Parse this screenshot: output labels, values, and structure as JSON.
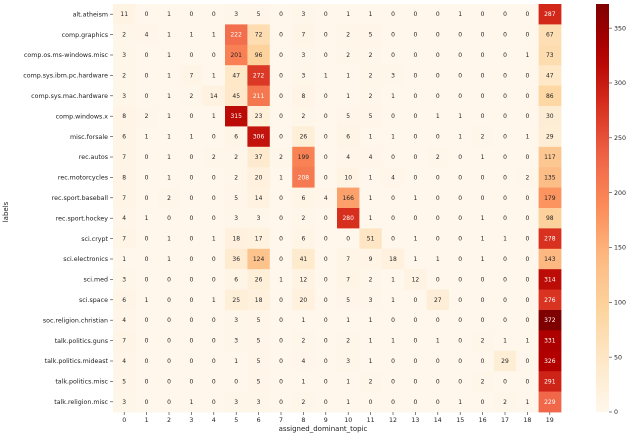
{
  "chart_data": {
    "type": "heatmap",
    "xlabel": "assigned_dominant_topic",
    "ylabel": "labels",
    "x_ticks": [
      "0",
      "1",
      "2",
      "3",
      "4",
      "5",
      "6",
      "7",
      "8",
      "9",
      "10",
      "11",
      "12",
      "13",
      "14",
      "15",
      "16",
      "17",
      "18",
      "19"
    ],
    "y_labels": [
      "alt.atheism",
      "comp.graphics",
      "comp.os.ms-windows.misc",
      "comp.sys.ibm.pc.hardware",
      "comp.sys.mac.hardware",
      "comp.windows.x",
      "misc.forsale",
      "rec.autos",
      "rec.motorcycles",
      "rec.sport.baseball",
      "rec.sport.hockey",
      "sci.crypt",
      "sci.electronics",
      "sci.med",
      "sci.space",
      "soc.religion.christian",
      "talk.politics.guns",
      "talk.politics.mideast",
      "talk.politics.misc",
      "talk.religion.misc"
    ],
    "values": [
      [
        11,
        0,
        1,
        0,
        0,
        3,
        5,
        0,
        3,
        0,
        1,
        1,
        0,
        0,
        0,
        1,
        0,
        0,
        0,
        287
      ],
      [
        2,
        4,
        1,
        1,
        1,
        222,
        72,
        0,
        7,
        0,
        2,
        5,
        0,
        0,
        0,
        0,
        0,
        0,
        0,
        67
      ],
      [
        3,
        0,
        1,
        0,
        0,
        201,
        96,
        0,
        3,
        0,
        2,
        2,
        0,
        0,
        0,
        0,
        0,
        0,
        1,
        73
      ],
      [
        2,
        0,
        1,
        7,
        1,
        47,
        272,
        0,
        3,
        1,
        1,
        2,
        3,
        0,
        0,
        0,
        0,
        0,
        0,
        47
      ],
      [
        3,
        0,
        1,
        2,
        14,
        45,
        211,
        0,
        8,
        0,
        1,
        2,
        1,
        0,
        0,
        0,
        0,
        0,
        0,
        86
      ],
      [
        8,
        2,
        1,
        0,
        1,
        315,
        23,
        0,
        2,
        0,
        5,
        5,
        0,
        0,
        1,
        1,
        0,
        0,
        0,
        30
      ],
      [
        6,
        1,
        1,
        1,
        0,
        6,
        306,
        0,
        26,
        0,
        6,
        1,
        1,
        0,
        0,
        1,
        2,
        0,
        1,
        29
      ],
      [
        7,
        0,
        1,
        0,
        2,
        2,
        37,
        2,
        199,
        0,
        4,
        4,
        0,
        0,
        2,
        0,
        1,
        0,
        0,
        117
      ],
      [
        8,
        0,
        1,
        0,
        0,
        2,
        20,
        1,
        208,
        0,
        10,
        1,
        4,
        0,
        0,
        0,
        0,
        0,
        2,
        135
      ],
      [
        7,
        0,
        2,
        0,
        0,
        5,
        14,
        0,
        6,
        4,
        166,
        1,
        0,
        1,
        0,
        0,
        0,
        0,
        0,
        179
      ],
      [
        4,
        1,
        0,
        0,
        0,
        3,
        3,
        0,
        2,
        0,
        280,
        1,
        0,
        0,
        0,
        0,
        1,
        0,
        0,
        98
      ],
      [
        7,
        0,
        1,
        0,
        1,
        18,
        17,
        0,
        6,
        0,
        0,
        51,
        0,
        1,
        0,
        0,
        1,
        1,
        0,
        278
      ],
      [
        1,
        0,
        1,
        0,
        0,
        36,
        124,
        0,
        41,
        0,
        7,
        9,
        18,
        1,
        1,
        0,
        1,
        0,
        0,
        143
      ],
      [
        3,
        0,
        0,
        0,
        0,
        6,
        26,
        1,
        12,
        0,
        7,
        2,
        1,
        12,
        0,
        0,
        0,
        0,
        0,
        314
      ],
      [
        6,
        1,
        0,
        0,
        1,
        25,
        18,
        0,
        20,
        0,
        5,
        3,
        1,
        0,
        27,
        0,
        0,
        0,
        0,
        276
      ],
      [
        4,
        0,
        0,
        0,
        0,
        3,
        5,
        0,
        1,
        0,
        1,
        1,
        0,
        0,
        0,
        0,
        0,
        0,
        0,
        372
      ],
      [
        7,
        0,
        0,
        0,
        0,
        3,
        5,
        0,
        2,
        0,
        2,
        1,
        1,
        0,
        1,
        0,
        2,
        1,
        1,
        331
      ],
      [
        4,
        0,
        0,
        0,
        0,
        1,
        5,
        0,
        4,
        0,
        3,
        1,
        0,
        0,
        0,
        0,
        0,
        29,
        0,
        326
      ],
      [
        5,
        0,
        0,
        0,
        0,
        0,
        5,
        0,
        1,
        0,
        1,
        2,
        0,
        0,
        0,
        0,
        2,
        0,
        0,
        291
      ],
      [
        3,
        0,
        0,
        1,
        0,
        3,
        3,
        0,
        2,
        0,
        1,
        0,
        0,
        0,
        0,
        1,
        0,
        2,
        1,
        229
      ]
    ],
    "colorbar_ticks": [
      0,
      50,
      100,
      150,
      200,
      250,
      300,
      350
    ],
    "value_range": [
      0,
      372
    ],
    "colormap": "OrRd",
    "grid": false
  }
}
